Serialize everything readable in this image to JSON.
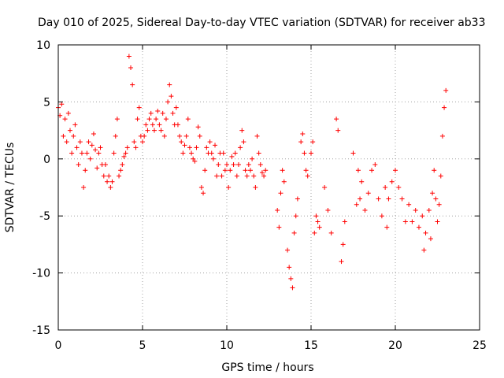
{
  "chart_data": {
    "type": "scatter",
    "title": "Day 010 of 2025, Sidereal Day-to-day VTEC variation (SDTVAR) for receiver ab33",
    "xlabel": "GPS time / hours",
    "ylabel": "SDTVAR / TECUs",
    "xlim": [
      0,
      25
    ],
    "ylim": [
      -15,
      10
    ],
    "xticks": [
      0,
      5,
      10,
      15,
      20,
      25
    ],
    "xtick_labels": [
      "0",
      "5",
      "10",
      "15",
      "20",
      "25"
    ],
    "yticks": [
      10,
      5,
      0,
      -5,
      -10,
      -15
    ],
    "ytick_labels": [
      "10",
      "5",
      "0",
      "-5",
      "-10",
      "-15"
    ],
    "grid": true,
    "marker": "+",
    "color": "#ff0000",
    "series": [
      {
        "name": "SDTVAR",
        "points": [
          [
            0.0,
            4.5
          ],
          [
            0.1,
            3.8
          ],
          [
            0.2,
            4.8
          ],
          [
            0.3,
            2.0
          ],
          [
            0.4,
            3.5
          ],
          [
            0.5,
            1.5
          ],
          [
            0.6,
            4.0
          ],
          [
            0.7,
            2.5
          ],
          [
            0.8,
            0.5
          ],
          [
            0.9,
            2.0
          ],
          [
            1.0,
            3.0
          ],
          [
            1.1,
            1.0
          ],
          [
            1.2,
            -0.5
          ],
          [
            1.3,
            1.5
          ],
          [
            1.4,
            0.5
          ],
          [
            1.5,
            -2.5
          ],
          [
            1.6,
            -1.0
          ],
          [
            1.7,
            0.5
          ],
          [
            1.8,
            1.5
          ],
          [
            1.9,
            0.0
          ],
          [
            2.0,
            1.2
          ],
          [
            2.1,
            2.2
          ],
          [
            2.2,
            0.8
          ],
          [
            2.3,
            -0.8
          ],
          [
            2.4,
            0.5
          ],
          [
            2.5,
            1.0
          ],
          [
            2.6,
            -0.5
          ],
          [
            2.7,
            -1.5
          ],
          [
            2.8,
            -0.5
          ],
          [
            2.9,
            -2.0
          ],
          [
            3.0,
            -1.5
          ],
          [
            3.1,
            -2.5
          ],
          [
            3.2,
            -2.0
          ],
          [
            3.3,
            0.5
          ],
          [
            3.4,
            2.0
          ],
          [
            3.5,
            3.5
          ],
          [
            3.6,
            -1.5
          ],
          [
            3.7,
            -1.0
          ],
          [
            3.8,
            -0.5
          ],
          [
            3.9,
            0.2
          ],
          [
            4.0,
            0.5
          ],
          [
            4.1,
            1.0
          ],
          [
            4.2,
            9.0
          ],
          [
            4.3,
            8.0
          ],
          [
            4.4,
            6.5
          ],
          [
            4.5,
            1.5
          ],
          [
            4.6,
            1.0
          ],
          [
            4.7,
            3.5
          ],
          [
            4.8,
            4.5
          ],
          [
            4.9,
            2.0
          ],
          [
            5.0,
            1.5
          ],
          [
            5.1,
            2.0
          ],
          [
            5.2,
            3.0
          ],
          [
            5.3,
            2.5
          ],
          [
            5.4,
            3.5
          ],
          [
            5.5,
            4.0
          ],
          [
            5.6,
            3.0
          ],
          [
            5.7,
            2.5
          ],
          [
            5.8,
            3.5
          ],
          [
            5.9,
            4.2
          ],
          [
            6.0,
            3.0
          ],
          [
            6.1,
            2.5
          ],
          [
            6.2,
            4.0
          ],
          [
            6.3,
            2.0
          ],
          [
            6.4,
            3.5
          ],
          [
            6.5,
            5.0
          ],
          [
            6.6,
            6.5
          ],
          [
            6.7,
            5.5
          ],
          [
            6.8,
            4.0
          ],
          [
            6.9,
            3.0
          ],
          [
            7.0,
            4.5
          ],
          [
            7.1,
            3.0
          ],
          [
            7.2,
            2.0
          ],
          [
            7.3,
            1.5
          ],
          [
            7.4,
            0.5
          ],
          [
            7.5,
            1.2
          ],
          [
            7.6,
            2.0
          ],
          [
            7.7,
            3.5
          ],
          [
            7.8,
            1.0
          ],
          [
            7.9,
            0.5
          ],
          [
            8.0,
            0.0
          ],
          [
            8.1,
            -0.2
          ],
          [
            8.2,
            1.0
          ],
          [
            8.3,
            2.8
          ],
          [
            8.4,
            2.0
          ],
          [
            8.5,
            -2.5
          ],
          [
            8.6,
            -3.0
          ],
          [
            8.7,
            -1.0
          ],
          [
            8.8,
            1.0
          ],
          [
            8.9,
            0.5
          ],
          [
            9.0,
            1.5
          ],
          [
            9.1,
            0.5
          ],
          [
            9.2,
            0.0
          ],
          [
            9.3,
            1.2
          ],
          [
            9.4,
            -1.5
          ],
          [
            9.5,
            -0.5
          ],
          [
            9.6,
            0.5
          ],
          [
            9.7,
            -1.5
          ],
          [
            9.8,
            0.5
          ],
          [
            9.9,
            -1.0
          ],
          [
            10.0,
            -0.5
          ],
          [
            10.1,
            -2.5
          ],
          [
            10.2,
            -1.0
          ],
          [
            10.3,
            0.2
          ],
          [
            10.4,
            -0.5
          ],
          [
            10.5,
            0.5
          ],
          [
            10.6,
            -1.5
          ],
          [
            10.7,
            -0.5
          ],
          [
            10.8,
            1.0
          ],
          [
            10.9,
            2.5
          ],
          [
            11.0,
            1.5
          ],
          [
            11.1,
            -1.0
          ],
          [
            11.2,
            -1.5
          ],
          [
            11.3,
            -0.5
          ],
          [
            11.4,
            -1.0
          ],
          [
            11.5,
            0.0
          ],
          [
            11.6,
            -1.5
          ],
          [
            11.7,
            -2.5
          ],
          [
            11.8,
            2.0
          ],
          [
            11.9,
            0.5
          ],
          [
            12.0,
            -0.5
          ],
          [
            12.1,
            -1.2
          ],
          [
            12.2,
            -1.5
          ],
          [
            12.3,
            -1.0
          ],
          [
            13.0,
            -4.5
          ],
          [
            13.1,
            -6.0
          ],
          [
            13.2,
            -3.0
          ],
          [
            13.3,
            -1.0
          ],
          [
            13.4,
            -2.0
          ],
          [
            13.6,
            -8.0
          ],
          [
            13.7,
            -9.5
          ],
          [
            13.8,
            -10.5
          ],
          [
            13.9,
            -11.3
          ],
          [
            14.0,
            -6.5
          ],
          [
            14.1,
            -5.0
          ],
          [
            14.2,
            -3.5
          ],
          [
            14.4,
            1.5
          ],
          [
            14.5,
            2.2
          ],
          [
            14.6,
            0.5
          ],
          [
            14.7,
            -1.0
          ],
          [
            14.8,
            -1.5
          ],
          [
            15.0,
            0.5
          ],
          [
            15.1,
            1.5
          ],
          [
            15.2,
            -6.5
          ],
          [
            15.3,
            -5.0
          ],
          [
            15.4,
            -5.5
          ],
          [
            15.5,
            -6.0
          ],
          [
            15.8,
            -2.5
          ],
          [
            16.0,
            -4.5
          ],
          [
            16.2,
            -6.5
          ],
          [
            16.5,
            3.5
          ],
          [
            16.6,
            2.5
          ],
          [
            16.8,
            -9.0
          ],
          [
            16.9,
            -7.5
          ],
          [
            17.0,
            -5.5
          ],
          [
            17.5,
            0.5
          ],
          [
            17.7,
            -4.0
          ],
          [
            17.8,
            -1.0
          ],
          [
            17.9,
            -3.5
          ],
          [
            18.0,
            -2.0
          ],
          [
            18.2,
            -4.5
          ],
          [
            18.4,
            -3.0
          ],
          [
            18.6,
            -1.0
          ],
          [
            18.8,
            -0.5
          ],
          [
            19.0,
            -3.5
          ],
          [
            19.2,
            -5.0
          ],
          [
            19.4,
            -2.5
          ],
          [
            19.5,
            -6.0
          ],
          [
            19.6,
            -3.5
          ],
          [
            19.8,
            -2.0
          ],
          [
            20.0,
            -1.0
          ],
          [
            20.2,
            -2.5
          ],
          [
            20.4,
            -3.5
          ],
          [
            20.6,
            -5.5
          ],
          [
            20.8,
            -4.0
          ],
          [
            21.0,
            -5.5
          ],
          [
            21.2,
            -4.5
          ],
          [
            21.4,
            -6.0
          ],
          [
            21.6,
            -5.0
          ],
          [
            21.7,
            -8.0
          ],
          [
            21.8,
            -6.5
          ],
          [
            22.0,
            -4.5
          ],
          [
            22.1,
            -7.0
          ],
          [
            22.2,
            -3.0
          ],
          [
            22.3,
            -1.0
          ],
          [
            22.4,
            -3.5
          ],
          [
            22.5,
            -5.5
          ],
          [
            22.6,
            -4.0
          ],
          [
            22.7,
            -1.5
          ],
          [
            22.8,
            2.0
          ],
          [
            22.9,
            4.5
          ],
          [
            23.0,
            6.0
          ]
        ]
      }
    ]
  }
}
